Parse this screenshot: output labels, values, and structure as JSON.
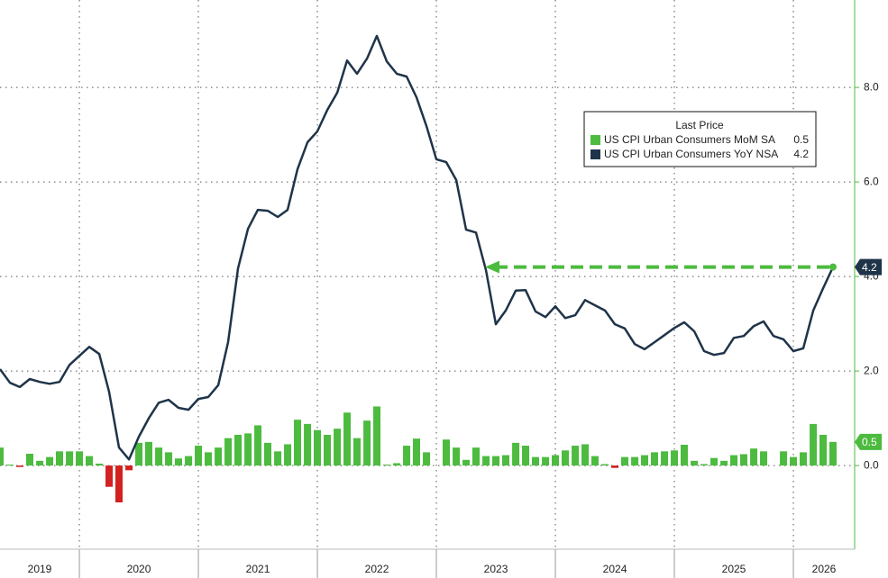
{
  "chart_data": {
    "type": "bar_line",
    "x": [
      2019.333,
      2019.417,
      2019.5,
      2019.583,
      2019.667,
      2019.75,
      2019.833,
      2019.917,
      2020.0,
      2020.083,
      2020.167,
      2020.25,
      2020.333,
      2020.417,
      2020.5,
      2020.583,
      2020.667,
      2020.75,
      2020.833,
      2020.917,
      2021.0,
      2021.083,
      2021.167,
      2021.25,
      2021.333,
      2021.417,
      2021.5,
      2021.583,
      2021.667,
      2021.75,
      2021.833,
      2021.917,
      2022.0,
      2022.083,
      2022.167,
      2022.25,
      2022.333,
      2022.417,
      2022.5,
      2022.583,
      2022.667,
      2022.75,
      2022.833,
      2022.917,
      2023.0,
      2023.083,
      2023.167,
      2023.25,
      2023.333,
      2023.417,
      2023.5,
      2023.583,
      2023.667,
      2023.75,
      2023.833,
      2023.917,
      2024.0,
      2024.083,
      2024.167,
      2024.25,
      2024.333,
      2024.417,
      2024.5,
      2024.583,
      2024.667,
      2024.75,
      2024.833,
      2024.917,
      2025.0,
      2025.083,
      2025.167,
      2025.25,
      2025.333,
      2025.417,
      2025.5,
      2025.583,
      2025.667,
      2025.75,
      2025.833,
      2025.917,
      2026.0,
      2026.083,
      2026.167,
      2026.25,
      2026.333
    ],
    "series": [
      {
        "name": "US CPI Urban Consumers MoM SA",
        "color": "#4cbb3f",
        "negative_color": "#d32020",
        "kind": "bar",
        "values": [
          0.38,
          0.02,
          -0.03,
          0.25,
          0.1,
          0.18,
          0.3,
          0.3,
          0.3,
          0.2,
          0.04,
          -0.45,
          -0.78,
          -0.1,
          0.48,
          0.5,
          0.38,
          0.28,
          0.15,
          0.2,
          0.42,
          0.28,
          0.38,
          0.58,
          0.65,
          0.68,
          0.85,
          0.48,
          0.3,
          0.45,
          0.97,
          0.88,
          0.75,
          0.65,
          0.78,
          1.12,
          0.58,
          0.95,
          1.25,
          0.02,
          0.05,
          0.42,
          0.57,
          0.28,
          0.0,
          0.55,
          0.38,
          0.12,
          0.38,
          0.2,
          0.2,
          0.22,
          0.48,
          0.42,
          0.18,
          0.18,
          0.22,
          0.32,
          0.42,
          0.45,
          0.2,
          0.03,
          -0.05,
          0.18,
          0.18,
          0.22,
          0.28,
          0.3,
          0.32,
          0.44,
          0.1,
          0.03,
          0.16,
          0.1,
          0.22,
          0.24,
          0.36,
          0.3,
          0.0,
          0.3,
          0.18,
          0.28,
          0.88,
          0.65,
          0.5
        ]
      },
      {
        "name": "US CPI Urban Consumers YoY NSA",
        "color": "#1f3449",
        "kind": "line",
        "values": [
          2.04,
          1.75,
          1.66,
          1.83,
          1.77,
          1.73,
          1.77,
          2.13,
          2.32,
          2.51,
          2.36,
          1.56,
          0.38,
          0.13,
          0.61,
          1.0,
          1.33,
          1.39,
          1.22,
          1.18,
          1.41,
          1.45,
          1.7,
          2.61,
          4.17,
          5.01,
          5.41,
          5.39,
          5.26,
          5.41,
          6.27,
          6.84,
          7.07,
          7.52,
          7.89,
          8.57,
          8.29,
          8.61,
          9.09,
          8.55,
          8.29,
          8.23,
          7.79,
          7.18,
          6.48,
          6.42,
          6.04,
          4.99,
          4.93,
          4.13,
          2.99,
          3.28,
          3.7,
          3.71,
          3.26,
          3.14,
          3.37,
          3.12,
          3.18,
          3.5,
          3.39,
          3.28,
          2.99,
          2.9,
          2.57,
          2.46,
          2.61,
          2.76,
          2.91,
          3.03,
          2.84,
          2.42,
          2.34,
          2.38,
          2.7,
          2.74,
          2.95,
          3.05,
          2.74,
          2.67,
          2.42,
          2.48,
          3.28,
          3.75,
          4.2
        ]
      }
    ],
    "legend_title": "Last Price",
    "year_labels": [
      "2019",
      "2020",
      "2021",
      "2022",
      "2023",
      "2024",
      "2025",
      "2026"
    ],
    "xlim": [
      2019.333,
      2026.515
    ],
    "xticks": [
      2020,
      2021,
      2022,
      2023,
      2024,
      2025,
      2026
    ],
    "ylim": [
      -1.77,
      9.85
    ],
    "yticks": [
      {
        "value": 0,
        "label": "0.0"
      },
      {
        "value": 2,
        "label": "2.0"
      },
      {
        "value": 4,
        "label": "4.0"
      },
      {
        "value": 6,
        "label": "6.0"
      },
      {
        "value": 8,
        "label": "8.0"
      }
    ],
    "grid": true,
    "axis_color": "#4cbb3f"
  }
}
